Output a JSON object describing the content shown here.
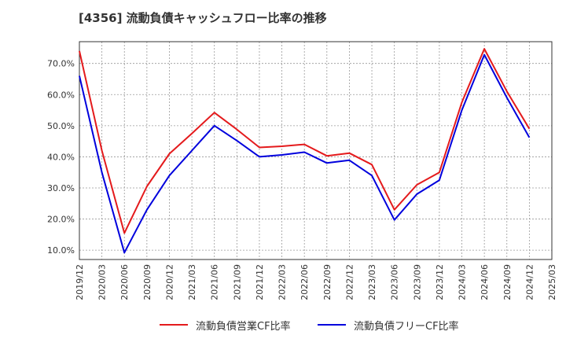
{
  "chart_data": {
    "type": "line",
    "title": "[4356]  流動負債キャッシュフロー比率の推移",
    "xlabel": "",
    "ylabel": "",
    "x": [
      "2019/12",
      "2020/03",
      "2020/06",
      "2020/09",
      "2020/12",
      "2021/03",
      "2021/06",
      "2021/09",
      "2021/12",
      "2022/03",
      "2022/06",
      "2022/09",
      "2022/12",
      "2023/03",
      "2023/06",
      "2023/09",
      "2023/12",
      "2024/03",
      "2024/06",
      "2024/09",
      "2024/12",
      "2025/03"
    ],
    "ytick_labels": [
      "10.0%",
      "20.0%",
      "30.0%",
      "40.0%",
      "50.0%",
      "60.0%",
      "70.0%"
    ],
    "yticks": [
      10,
      20,
      30,
      40,
      50,
      60,
      70
    ],
    "ylim": [
      7,
      77
    ],
    "grid": true,
    "legend_position": "bottom",
    "series": [
      {
        "name": "流動負債営業CF比率",
        "color": "#e41a1c",
        "values": [
          74.0,
          42.0,
          15.5,
          30.5,
          41.0,
          47.5,
          54.2,
          48.8,
          43.0,
          43.4,
          44.0,
          40.3,
          41.2,
          37.5,
          23.0,
          31.0,
          35.0,
          57.5,
          74.7,
          61.0,
          49.0,
          null
        ]
      },
      {
        "name": "流動負債フリーCF比率",
        "color": "#0000dd",
        "values": [
          66.0,
          35.0,
          9.2,
          23.0,
          34.0,
          42.0,
          50.0,
          45.2,
          40.0,
          40.6,
          41.5,
          38.0,
          38.9,
          34.0,
          19.7,
          28.0,
          32.5,
          55.0,
          72.8,
          59.0,
          46.2,
          null
        ]
      }
    ]
  }
}
